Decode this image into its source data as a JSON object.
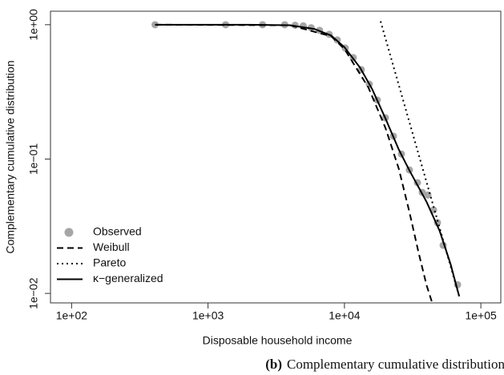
{
  "chart_data": {
    "type": "line",
    "xscale": "log",
    "yscale": "log",
    "x_label": "Disposable household income",
    "y_label": "Complementary cumulative distribution",
    "caption_label": "(b)",
    "caption": "Complementary cumulative distribution",
    "xlim": [
      70,
      140000
    ],
    "ylim": [
      0.0085,
      1.26
    ],
    "xticks": [
      {
        "value": 100,
        "label": "1e+02"
      },
      {
        "value": 1000,
        "label": "1e+03"
      },
      {
        "value": 10000,
        "label": "1e+04"
      },
      {
        "value": 100000,
        "label": "1e+05"
      }
    ],
    "yticks": [
      {
        "value": 0.01,
        "label": "1e−02"
      },
      {
        "value": 0.1,
        "label": "1e−01"
      },
      {
        "value": 1,
        "label": "1e+00"
      }
    ],
    "legend": "bottom-left",
    "series": [
      {
        "name": "Observed",
        "style": "points",
        "color": "#a6a6a6",
        "x": [
          409,
          1346,
          2510,
          3650,
          4350,
          4990,
          5700,
          6570,
          7730,
          8860,
          10140,
          11610,
          13290,
          15210,
          17420,
          19950,
          22850,
          26170,
          29930,
          34270,
          37200,
          40900,
          44980,
          48100,
          52900,
          67500
        ],
        "values": [
          1.0,
          1.0,
          1.0,
          1.0,
          0.99,
          0.98,
          0.95,
          0.908,
          0.848,
          0.77,
          0.671,
          0.569,
          0.463,
          0.361,
          0.275,
          0.203,
          0.148,
          0.109,
          0.083,
          0.0667,
          0.0565,
          0.054,
          0.0418,
          0.0336,
          0.0228,
          0.0116
        ]
      },
      {
        "name": "Weibull",
        "style": "dashed",
        "color": "#000000",
        "x": [
          409,
          4000,
          8000,
          10000,
          15000,
          20000,
          25000,
          30000,
          35000,
          40000,
          44000
        ],
        "values": [
          1.0,
          0.99,
          0.82,
          0.66,
          0.34,
          0.17,
          0.085,
          0.04,
          0.02,
          0.0115,
          0.0085
        ]
      },
      {
        "name": "Pareto",
        "style": "dotted",
        "color": "#000000",
        "x": [
          18400,
          69400
        ],
        "values": [
          1.06,
          0.0095
        ]
      },
      {
        "name": "κ−generalized",
        "style": "solid",
        "color": "#000000",
        "x": [
          409,
          2000,
          4000,
          6000,
          8000,
          10000,
          13000,
          16000,
          20000,
          25000,
          30000,
          40000,
          50000,
          60000,
          69400
        ],
        "values": [
          1.0,
          1.0,
          0.99,
          0.93,
          0.83,
          0.68,
          0.48,
          0.33,
          0.2,
          0.118,
          0.082,
          0.048,
          0.029,
          0.0165,
          0.0095
        ]
      }
    ]
  }
}
